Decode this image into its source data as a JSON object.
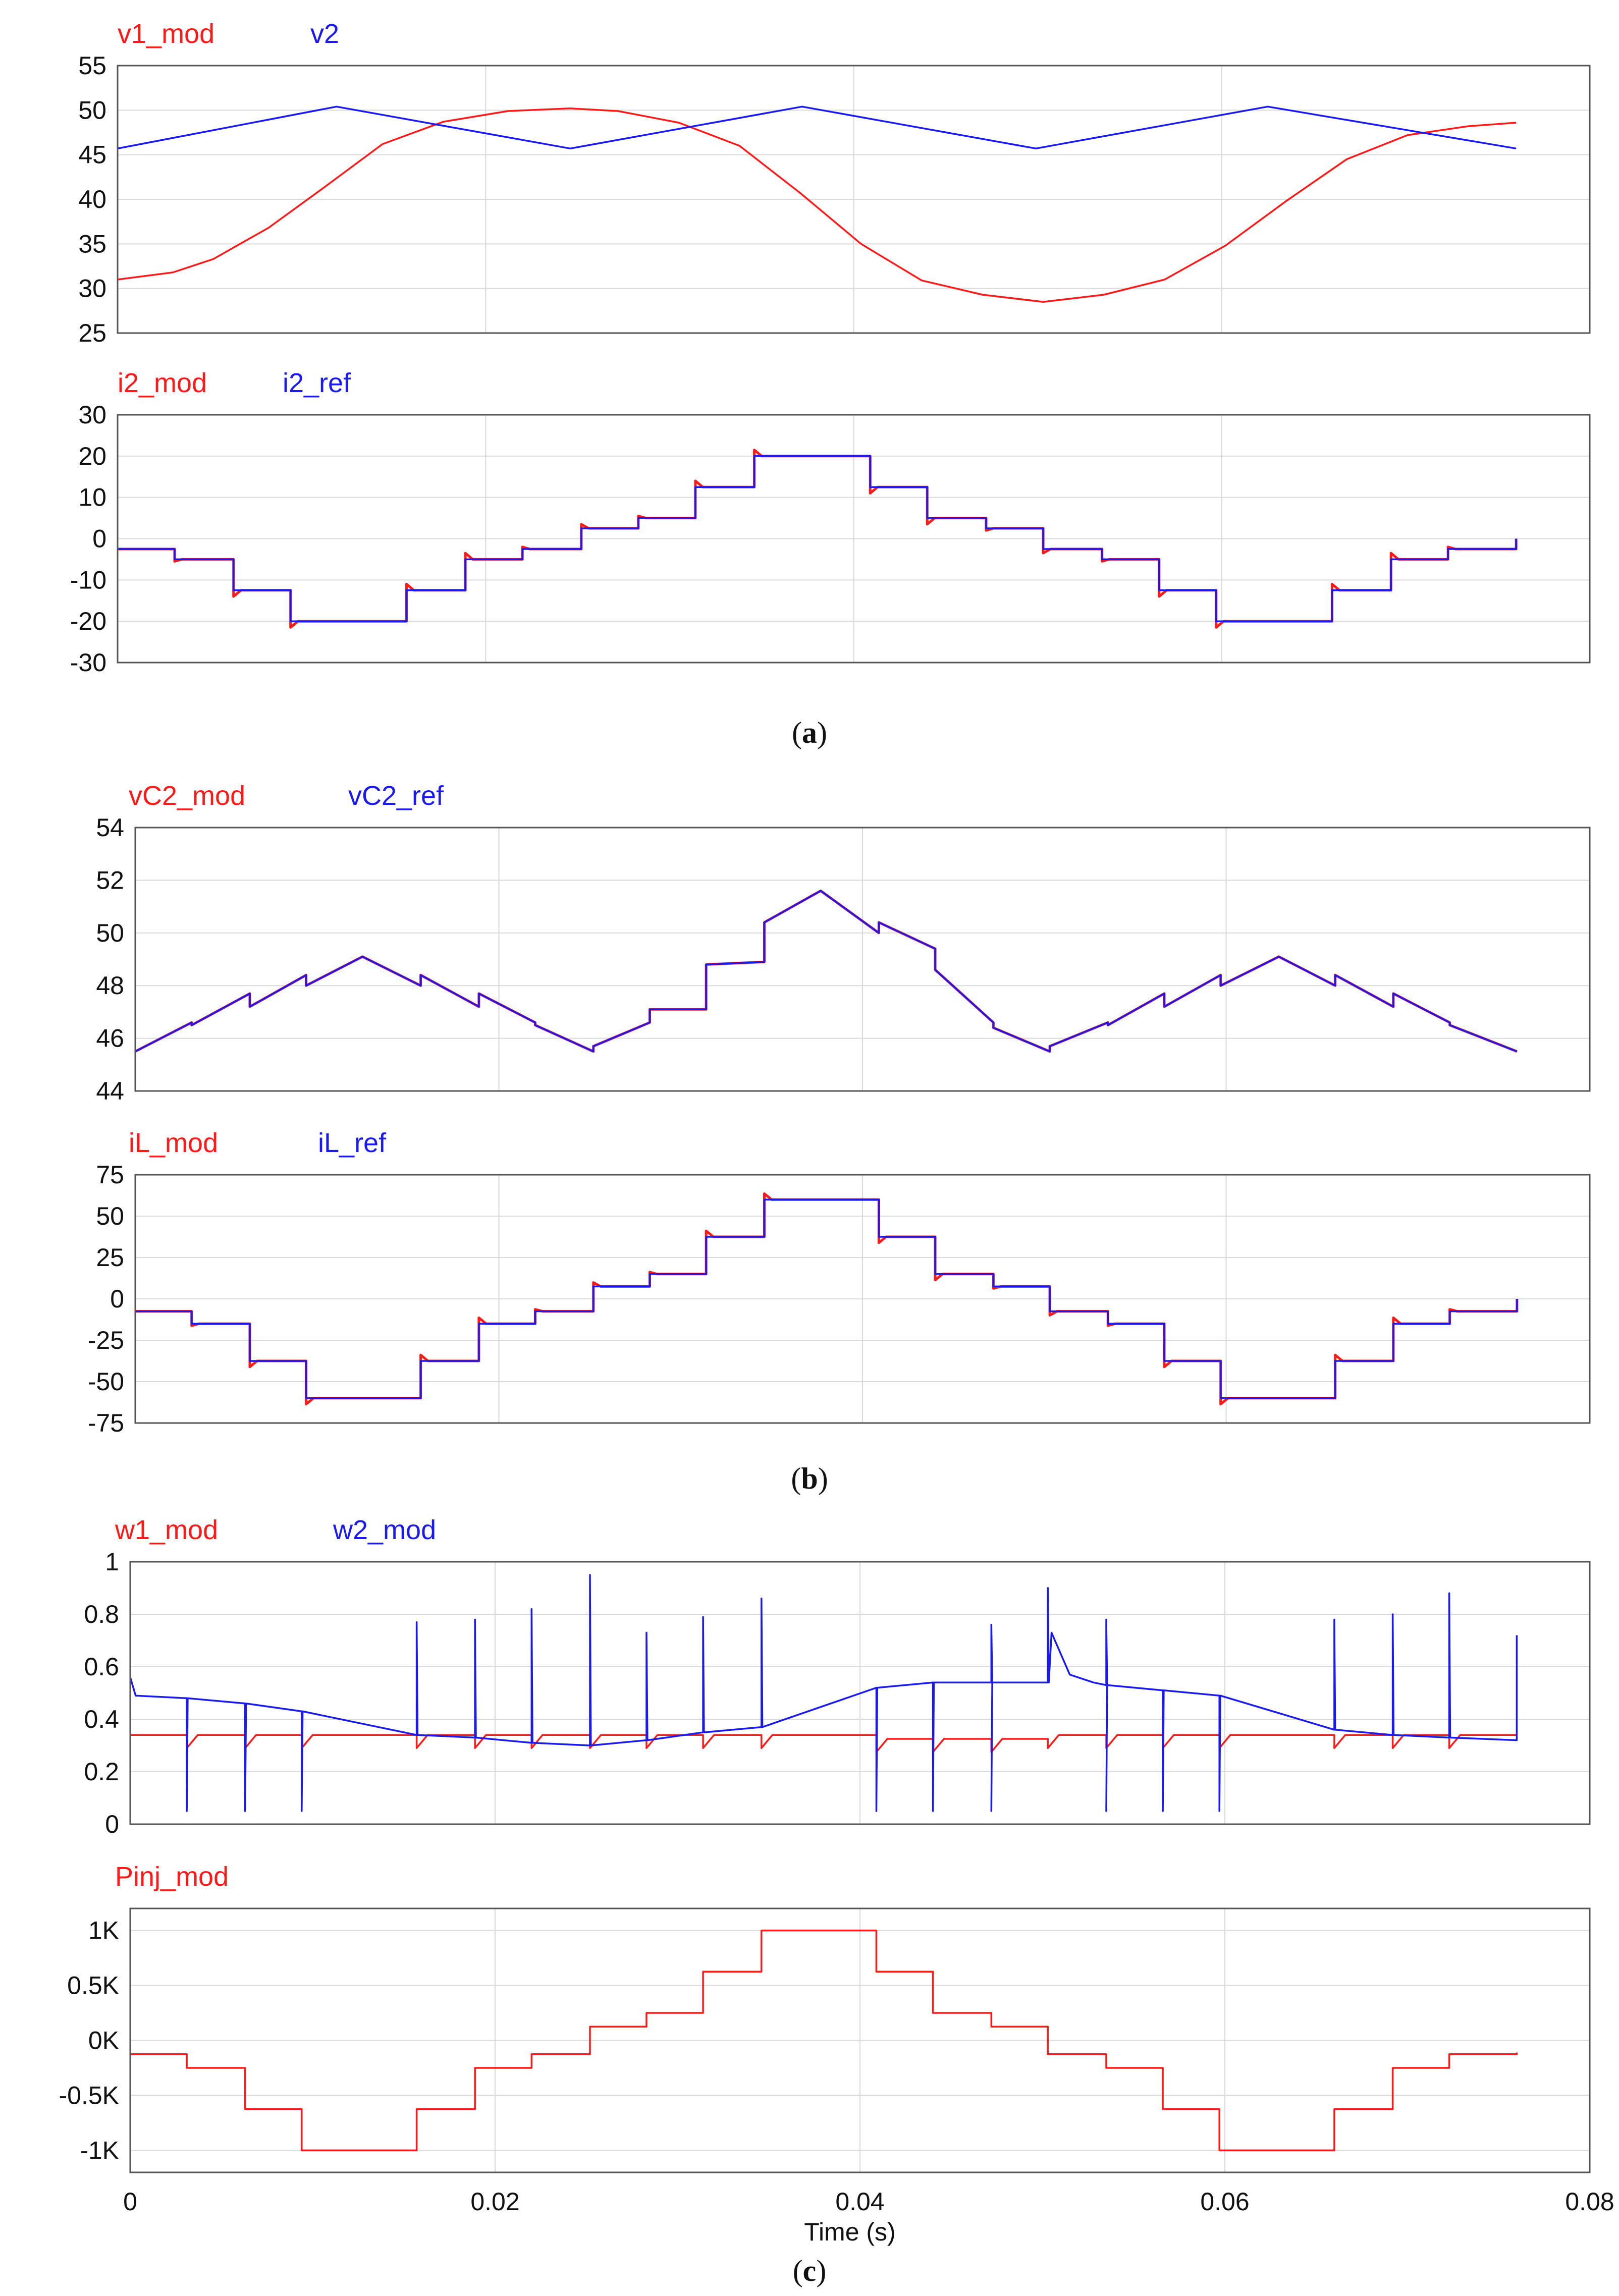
{
  "colors": {
    "red": "#ff1a1a",
    "blue": "#1a1aee",
    "grid": "#d9d9d9",
    "frame": "#555555"
  },
  "captions": {
    "a": "a",
    "b": "b",
    "c": "c"
  },
  "chart_data": [
    {
      "type": "line",
      "panel": "a",
      "series": [
        {
          "name": "v1_mod",
          "color": "#ff1a1a",
          "x": [
            0,
            0.003,
            0.0052,
            0.0082,
            0.0112,
            0.0144,
            0.0177,
            0.0212,
            0.0246,
            0.0272,
            0.0305,
            0.0338,
            0.0371,
            0.0404,
            0.0437,
            0.047,
            0.0503,
            0.0536,
            0.0569,
            0.0602,
            0.0635,
            0.0668,
            0.0701,
            0.0734,
            0.076
          ],
          "y": [
            31,
            31.8,
            33.3,
            36.8,
            41.3,
            46.2,
            48.7,
            49.9,
            50.2,
            49.9,
            48.6,
            46,
            40.7,
            35,
            30.9,
            29.3,
            28.5,
            29.3,
            31,
            34.8,
            39.8,
            44.5,
            47.2,
            48.2,
            48.6
          ]
        },
        {
          "name": "v2",
          "color": "#1a1aee",
          "x": [
            0,
            0.0119,
            0.0246,
            0.0372,
            0.0499,
            0.0625,
            0.076
          ],
          "y": [
            45.7,
            50.4,
            45.7,
            50.4,
            45.7,
            50.4,
            45.7
          ]
        }
      ],
      "ylim": [
        25,
        55
      ],
      "yticks": [
        55,
        50,
        45,
        40,
        35,
        30,
        25
      ],
      "xlim": [
        0,
        0.08
      ],
      "grid": true
    },
    {
      "type": "line",
      "panel": "a",
      "series": [
        {
          "name": "i2_mod",
          "color": "#ff1a1a",
          "steps": "i",
          "amp": 20,
          "overshoot": 0.05
        },
        {
          "name": "i2_ref",
          "color": "#1a1aee",
          "steps": "i",
          "amp": 20
        }
      ],
      "ylim": [
        -30,
        30
      ],
      "yticks": [
        30,
        20,
        10,
        0,
        -10,
        -20,
        -30
      ],
      "xlim": [
        0,
        0.08
      ],
      "grid": true
    },
    {
      "type": "line",
      "panel": "b",
      "series": [
        {
          "name": "vC2_mod",
          "color": "#ff1a1a",
          "steps": "ripple"
        },
        {
          "name": "vC2_ref",
          "color": "#1a1aee",
          "steps": "ripple"
        }
      ],
      "ylim": [
        44,
        54
      ],
      "yticks": [
        54,
        52,
        50,
        48,
        46,
        44
      ],
      "xlim": [
        0,
        0.08
      ],
      "grid": true
    },
    {
      "type": "line",
      "panel": "b",
      "series": [
        {
          "name": "iL_mod",
          "color": "#ff1a1a",
          "steps": "i",
          "amp": 60,
          "overshoot": 0.04
        },
        {
          "name": "iL_ref",
          "color": "#1a1aee",
          "steps": "i",
          "amp": 60
        }
      ],
      "ylim": [
        -75,
        75
      ],
      "yticks": [
        75,
        50,
        25,
        0,
        -25,
        -50,
        -75
      ],
      "xlim": [
        0,
        0.08
      ],
      "grid": true
    },
    {
      "type": "line",
      "panel": "c",
      "series": [
        {
          "name": "w1_mod",
          "color": "#ff1a1a",
          "steps": "w1"
        },
        {
          "name": "w2_mod",
          "color": "#1a1aee",
          "steps": "w2"
        }
      ],
      "ylim": [
        0,
        1
      ],
      "yticks": [
        1,
        0.8,
        0.6,
        0.4,
        0.2,
        0
      ],
      "ytick_labels": [
        "1",
        "0.8",
        "0.6",
        "0.4",
        "0.2",
        "0"
      ],
      "xlim": [
        0,
        0.08
      ],
      "grid": true
    },
    {
      "type": "line",
      "panel": "c",
      "series": [
        {
          "name": "Pinj_mod",
          "color": "#ff1a1a",
          "steps": "p"
        }
      ],
      "ylim": [
        -1.2,
        1.2
      ],
      "yticks": [
        1,
        0.5,
        0,
        -0.5,
        -1
      ],
      "ytick_labels": [
        "1K",
        "0.5K",
        "0K",
        "-0.5K",
        "-1K"
      ],
      "xlim": [
        0,
        0.08
      ],
      "xticks": [
        0,
        0.02,
        0.04,
        0.06,
        0.08
      ],
      "xtick_labels": [
        "0",
        "0.02",
        "0.04",
        "0.06",
        "0.08"
      ],
      "xlabel": "Time (s)",
      "grid": true
    }
  ],
  "step_profile": {
    "edges": [
      0,
      0.0031,
      0.0063,
      0.0094,
      0.0157,
      0.0189,
      0.022,
      0.0252,
      0.0283,
      0.0314,
      0.0346,
      0.0409,
      0.044,
      0.0472,
      0.0503,
      0.0535,
      0.0566,
      0.0597,
      0.066,
      0.0692,
      0.0723,
      0.076
    ],
    "levels": [
      -0.125,
      -0.25,
      -0.625,
      -1,
      -0.625,
      -0.25,
      -0.125,
      0.125,
      0.25,
      0.625,
      1,
      0.625,
      0.25,
      0.125,
      -0.125,
      -0.25,
      -0.625,
      -1,
      -0.625,
      -0.25,
      -0.125
    ]
  },
  "ripple_profile": {
    "x": [
      0,
      0.0031,
      0.0063,
      0.0094,
      0.0125,
      0.0157,
      0.0189,
      0.022,
      0.0252,
      0.0283,
      0.0314,
      0.0346,
      0.0377,
      0.0409,
      0.044,
      0.0472,
      0.0503,
      0.0535,
      0.0566,
      0.0597,
      0.0629,
      0.066,
      0.0692,
      0.0723,
      0.076
    ],
    "pre": [
      45.5,
      46.6,
      47.7,
      48.4,
      49.1,
      48.0,
      47.2,
      46.6,
      45.5,
      46.6,
      47.1,
      48.9,
      51.6,
      50.0,
      49.4,
      46.6,
      45.5,
      46.6,
      47.7,
      48.4,
      49.1,
      48.0,
      47.2,
      46.6,
      45.5
    ],
    "post": [
      45.5,
      46.5,
      47.2,
      48.0,
      49.1,
      48.4,
      47.7,
      46.5,
      45.7,
      47.1,
      48.8,
      50.4,
      51.6,
      50.4,
      48.6,
      46.4,
      45.7,
      46.5,
      47.2,
      48.0,
      49.1,
      48.4,
      47.7,
      46.5,
      45.5
    ]
  },
  "w_profile": {
    "w1": 0.34,
    "w1_midband": [
      0.0409,
      0.0503,
      0.325
    ],
    "w2_x": [
      0,
      0.0031,
      0.0063,
      0.0094,
      0.0157,
      0.0189,
      0.022,
      0.0252,
      0.0283,
      0.0314,
      0.0346,
      0.0409,
      0.044,
      0.0472,
      0.0503,
      0.0535,
      0.0566,
      0.0597,
      0.066,
      0.0692,
      0.0723,
      0.076
    ],
    "w2_y": [
      0.48,
      0.48,
      0.46,
      0.43,
      0.34,
      0.33,
      0.31,
      0.3,
      0.32,
      0.35,
      0.37,
      0.52,
      0.54,
      0.54,
      0.54,
      0.53,
      0.51,
      0.49,
      0.36,
      0.34,
      0.33,
      0.32
    ],
    "spikes_up": [
      [
        0.0157,
        0.77
      ],
      [
        0.0189,
        0.78
      ],
      [
        0.022,
        0.82
      ],
      [
        0.0252,
        0.95
      ],
      [
        0.0283,
        0.73
      ],
      [
        0.0314,
        0.79
      ],
      [
        0.0346,
        0.86
      ],
      [
        0.0472,
        0.76
      ],
      [
        0.0503,
        0.9
      ],
      [
        0.0535,
        0.78
      ],
      [
        0.066,
        0.78
      ],
      [
        0.0692,
        0.8
      ],
      [
        0.0723,
        0.88
      ]
    ],
    "spikes_down": [
      [
        0.0031,
        0.05
      ],
      [
        0.0063,
        0.05
      ],
      [
        0.0094,
        0.05
      ],
      [
        0.0409,
        0.05
      ],
      [
        0.044,
        0.05
      ],
      [
        0.0472,
        0.05
      ],
      [
        0.0535,
        0.05
      ],
      [
        0.0566,
        0.05
      ],
      [
        0.0597,
        0.05
      ]
    ]
  }
}
